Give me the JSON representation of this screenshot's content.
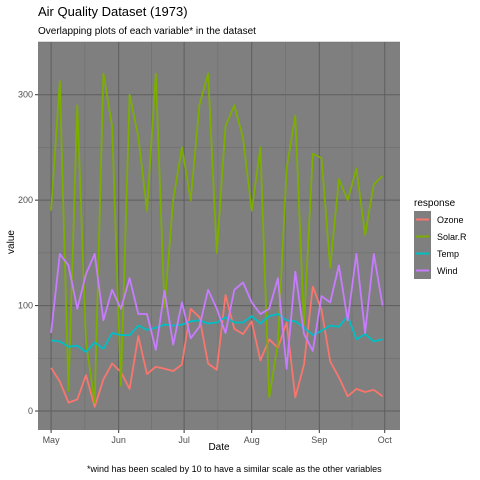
{
  "chart_data": {
    "type": "line",
    "title": "Air Quality Dataset (1973)",
    "subtitle": "Overlapping plots of each variable* in the dataset",
    "caption": "*wind has been scaled by 10 to have a similar scale as the other variables",
    "xlabel": "Date",
    "ylabel": "value",
    "ylim": [
      -18,
      350
    ],
    "xlim": [
      "1973-04-25",
      "1973-10-08"
    ],
    "x_ticks": [
      {
        "date": "1973-05-01",
        "label": "May"
      },
      {
        "date": "1973-06-01",
        "label": "Jun"
      },
      {
        "date": "1973-07-01",
        "label": "Jul"
      },
      {
        "date": "1973-08-01",
        "label": "Aug"
      },
      {
        "date": "1973-09-01",
        "label": "Sep"
      },
      {
        "date": "1973-10-01",
        "label": "Oct"
      }
    ],
    "y_ticks": [
      0,
      100,
      200,
      300
    ],
    "grid": true,
    "panel_background": "#7f7f7f",
    "legend": {
      "title": "response",
      "placement": "right"
    },
    "x": [
      "1973-05-01",
      "1973-05-05",
      "1973-05-09",
      "1973-05-13",
      "1973-05-17",
      "1973-05-21",
      "1973-05-25",
      "1973-05-29",
      "1973-06-02",
      "1973-06-06",
      "1973-06-10",
      "1973-06-14",
      "1973-06-18",
      "1973-06-22",
      "1973-06-26",
      "1973-06-30",
      "1973-07-04",
      "1973-07-08",
      "1973-07-12",
      "1973-07-16",
      "1973-07-20",
      "1973-07-24",
      "1973-07-28",
      "1973-08-01",
      "1973-08-05",
      "1973-08-09",
      "1973-08-13",
      "1973-08-17",
      "1973-08-21",
      "1973-08-25",
      "1973-08-29",
      "1973-09-02",
      "1973-09-06",
      "1973-09-10",
      "1973-09-14",
      "1973-09-18",
      "1973-09-22",
      "1973-09-26",
      "1973-09-30"
    ],
    "series": [
      {
        "name": "Ozone",
        "color": "#f8766d",
        "values": [
          41,
          28,
          8,
          11,
          34,
          4,
          30,
          45,
          37,
          21,
          71,
          35,
          42,
          40,
          38,
          44,
          97,
          89,
          45,
          39,
          110,
          78,
          73,
          85,
          48,
          68,
          60,
          84,
          13,
          44,
          118,
          96,
          47,
          32,
          14,
          21,
          18,
          20,
          14
        ]
      },
      {
        "name": "Solar.R",
        "color": "#7cae00",
        "values": [
          190,
          313,
          19,
          290,
          65,
          8,
          320,
          270,
          24,
          300,
          260,
          190,
          320,
          98,
          200,
          250,
          200,
          290,
          320,
          150,
          270,
          290,
          259,
          190,
          250,
          13,
          64,
          230,
          280,
          82,
          244,
          240,
          136,
          220,
          200,
          230,
          167,
          215,
          223
        ]
      },
      {
        "name": "Temp",
        "color": "#00bfc4",
        "values": [
          67,
          66,
          61,
          62,
          56,
          65,
          59,
          74,
          72,
          72,
          81,
          77,
          79,
          82,
          81,
          82,
          85,
          86,
          83,
          84,
          89,
          84,
          84,
          90,
          83,
          90,
          92,
          86,
          85,
          79,
          72,
          76,
          81,
          80,
          90,
          68,
          73,
          66,
          68
        ]
      },
      {
        "name": "Wind",
        "color": "#c77cff",
        "values": [
          74,
          149,
          138,
          97,
          130,
          149,
          86,
          115,
          97,
          126,
          92,
          92,
          58,
          114,
          63,
          103,
          69,
          80,
          115,
          97,
          74,
          115,
          122,
          103,
          92,
          97,
          126,
          40,
          132,
          73,
          57,
          109,
          103,
          138,
          86,
          149,
          74,
          149,
          100
        ]
      }
    ]
  }
}
